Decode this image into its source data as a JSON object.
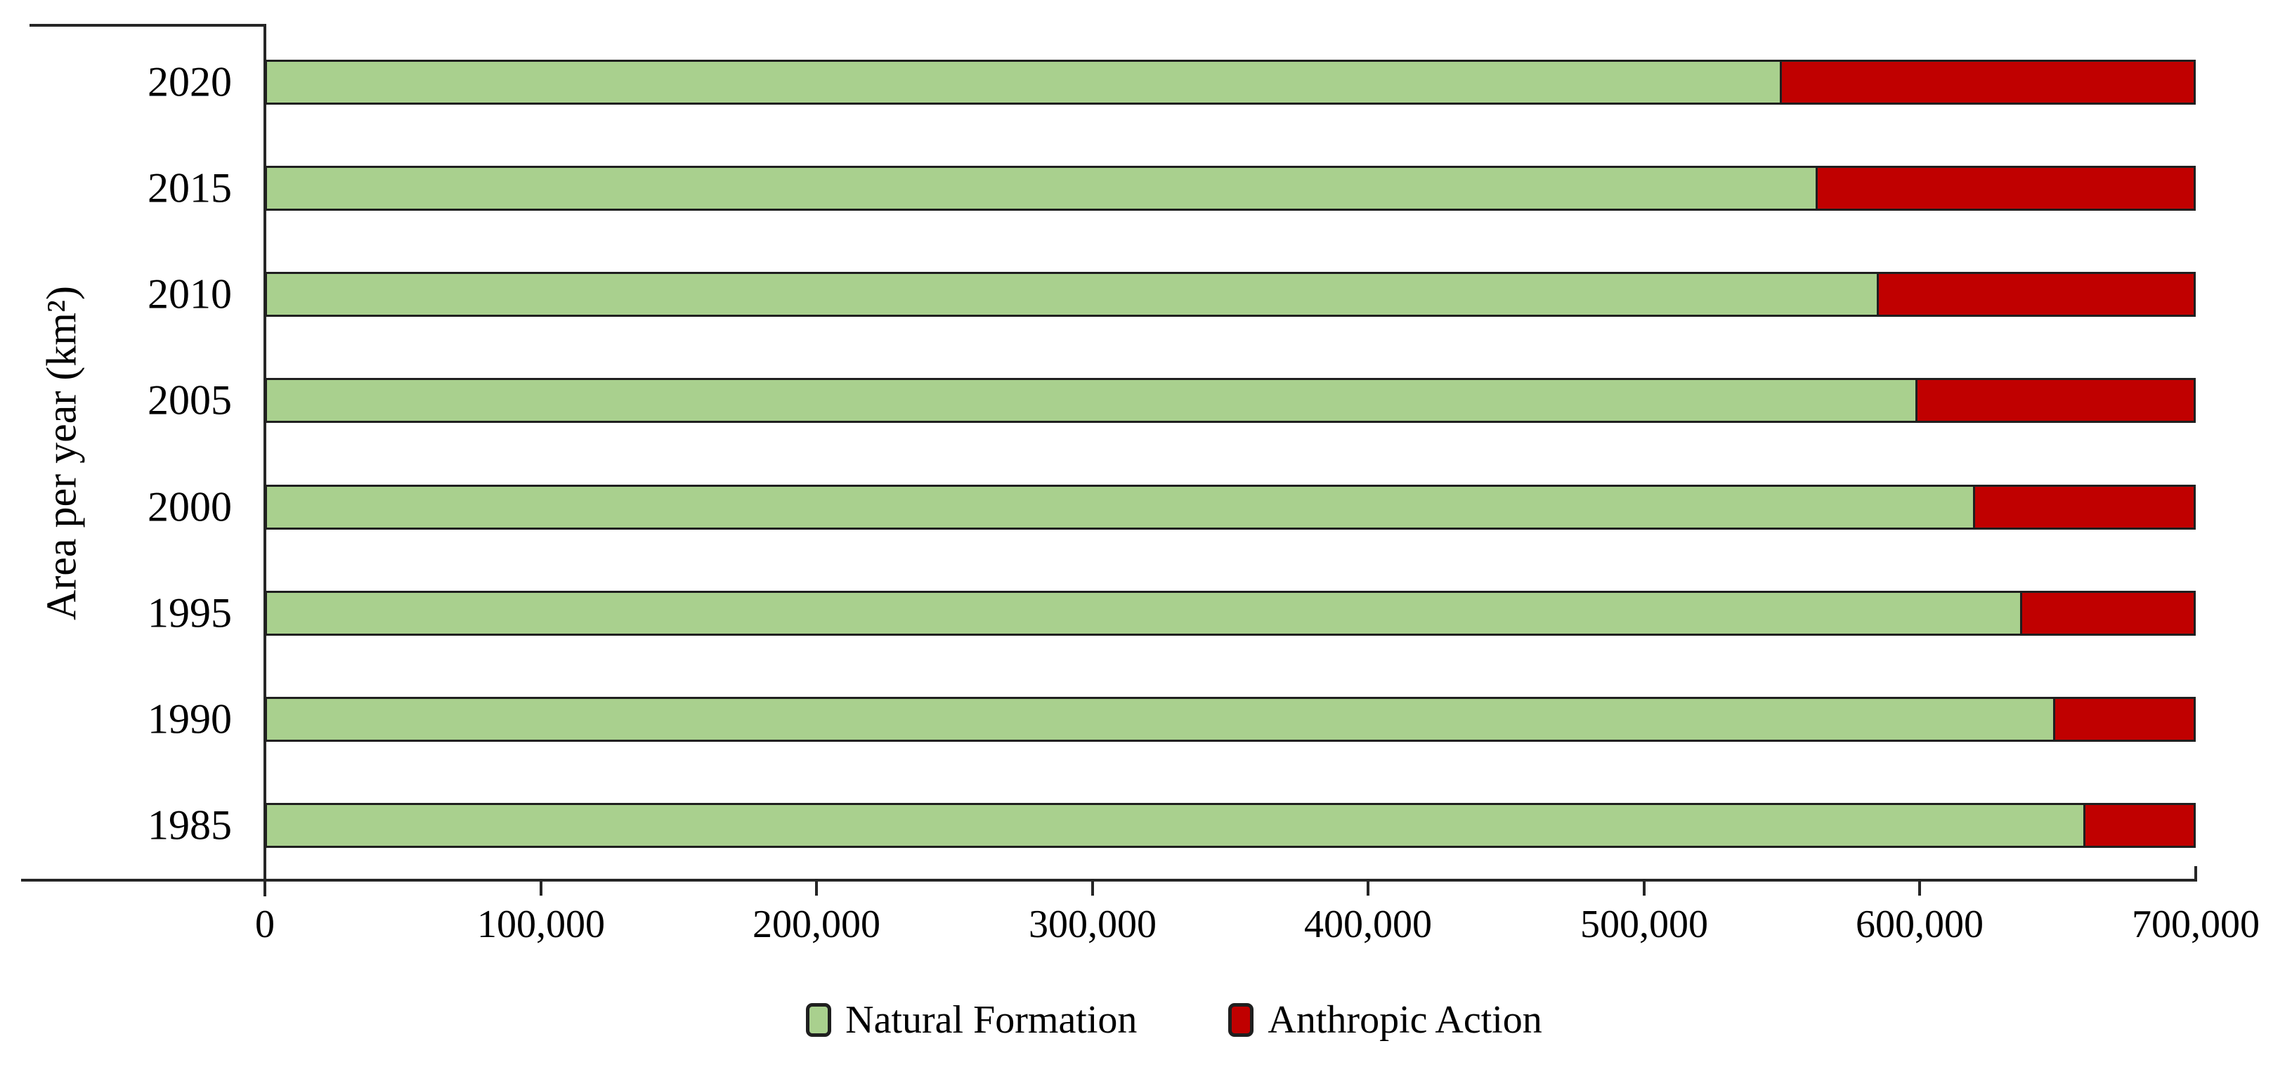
{
  "chart_data": {
    "type": "bar",
    "orientation": "horizontal",
    "stacked": true,
    "title": "",
    "xlabel": "",
    "ylabel": "Area per year (km²)",
    "categories": [
      "2020",
      "2015",
      "2010",
      "2005",
      "2000",
      "1995",
      "1990",
      "1985"
    ],
    "series": [
      {
        "name": "Natural Formation",
        "color": "#a9d08e",
        "border_color": "#1f1f1f",
        "values": [
          550000,
          563000,
          585000,
          599000,
          620000,
          637000,
          649000,
          660000
        ]
      },
      {
        "name": "Anthropic Action",
        "color": "#c00000",
        "border_color": "#1f1f1f",
        "values": [
          150000,
          137000,
          115000,
          101000,
          80000,
          63000,
          51000,
          40000
        ]
      }
    ],
    "xlim": [
      0,
      700000
    ],
    "x_tick_values": [
      0,
      100000,
      200000,
      300000,
      400000,
      500000,
      600000,
      700000
    ],
    "x_tick_labels": [
      "0",
      "100,000",
      "200,000",
      "300,000",
      "400,000",
      "500,000",
      "600,000",
      "700,000"
    ],
    "grid": false,
    "legend_position": "bottom",
    "axis_color": "#262626",
    "background": "#ffffff"
  }
}
